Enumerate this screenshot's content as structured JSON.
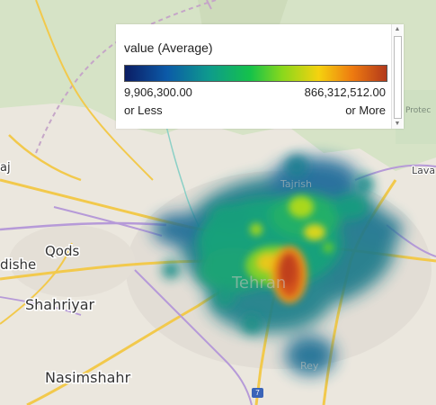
{
  "legend": {
    "title": "value (Average)",
    "min_value": "9,906,300.00",
    "max_value": "866,312,512.00",
    "min_caption": "or Less",
    "max_caption": "or More"
  },
  "map": {
    "places": [
      "Qods",
      "Shahriyar",
      "Nasimshahr",
      "dishe",
      "Tehran",
      "Tajrish",
      "Rey",
      "Lava",
      "Protec",
      "aj"
    ],
    "road_badge": "7"
  },
  "heatmap": {
    "scale_min": 9906300,
    "scale_max": 866312512,
    "hotspot": "Tehran center"
  }
}
